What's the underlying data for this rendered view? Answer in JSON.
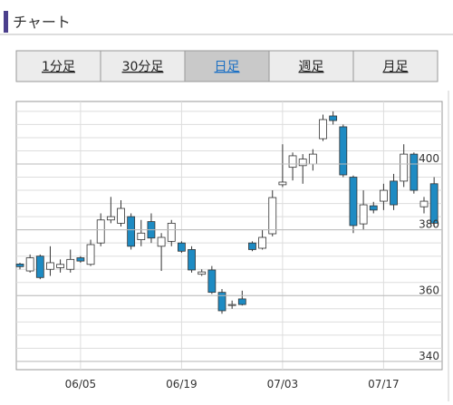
{
  "header": {
    "title": "チャート"
  },
  "tabs": [
    {
      "label": "1分足"
    },
    {
      "label": "30分足"
    },
    {
      "label": "日足",
      "selected": true
    },
    {
      "label": "週足"
    },
    {
      "label": "月足"
    }
  ],
  "chart_data": {
    "type": "candlestick",
    "categories": [
      null,
      null,
      null,
      null,
      null,
      null,
      "06/05",
      null,
      null,
      null,
      null,
      null,
      null,
      null,
      null,
      null,
      "06/19",
      null,
      null,
      null,
      null,
      null,
      null,
      null,
      null,
      null,
      "07/03",
      null,
      null,
      null,
      null,
      null,
      null,
      null,
      null,
      null,
      "07/17",
      null,
      null,
      null,
      null,
      null
    ],
    "open": [
      369.6,
      367.5,
      372,
      368,
      368.5,
      368,
      371.5,
      369.5,
      376,
      383,
      382,
      384,
      377,
      382.5,
      375,
      376.5,
      376,
      374,
      366.5,
      367.8,
      361,
      357,
      359,
      376,
      374.4,
      378.8,
      393.7,
      399,
      399.5,
      400,
      407.7,
      414.6,
      411.3,
      396,
      381.8,
      387.3,
      388.7,
      394.8,
      394.8,
      403,
      387,
      394
    ],
    "high": [
      370,
      372.5,
      372.5,
      375,
      371,
      374,
      372,
      377,
      385,
      390,
      389,
      385,
      383,
      385,
      379,
      383,
      376.5,
      375,
      368,
      369,
      362,
      358.5,
      361.5,
      376.5,
      380,
      392,
      406,
      403.5,
      403,
      404.5,
      415,
      416,
      412,
      396.5,
      392,
      388.5,
      394,
      397,
      406,
      403.5,
      390,
      396
    ],
    "low": [
      368,
      367,
      365,
      366,
      367,
      367,
      370,
      369,
      375,
      382,
      381,
      374,
      375,
      376,
      367.5,
      375,
      373,
      367,
      366,
      360.5,
      354.5,
      356,
      357,
      373.5,
      374,
      378,
      393,
      395,
      394,
      398,
      407,
      412,
      396,
      379,
      380,
      385,
      386,
      386,
      393,
      391,
      385,
      381
    ],
    "close": [
      368.8,
      371.5,
      365.5,
      370,
      369.5,
      371,
      370.5,
      375.5,
      383,
      384,
      386.5,
      375,
      379,
      377.5,
      377.7,
      382,
      373.5,
      367.8,
      367.2,
      361,
      355.4,
      357.3,
      357.3,
      374,
      377.7,
      389.8,
      394.5,
      402.5,
      401.5,
      403,
      413.5,
      413.2,
      396.7,
      381.3,
      387.6,
      386,
      392,
      387.6,
      403,
      392,
      388.7,
      382
    ],
    "up_color": "#ffffff",
    "down_color": "#1e8bc3",
    "ylim": [
      337.5,
      419
    ],
    "yticks": [
      340,
      360,
      380,
      400
    ],
    "ygrid": [
      340,
      344,
      348,
      352,
      356,
      360,
      364,
      368,
      372,
      376,
      380,
      384,
      388,
      392,
      396,
      400,
      404,
      408,
      412,
      416
    ]
  }
}
